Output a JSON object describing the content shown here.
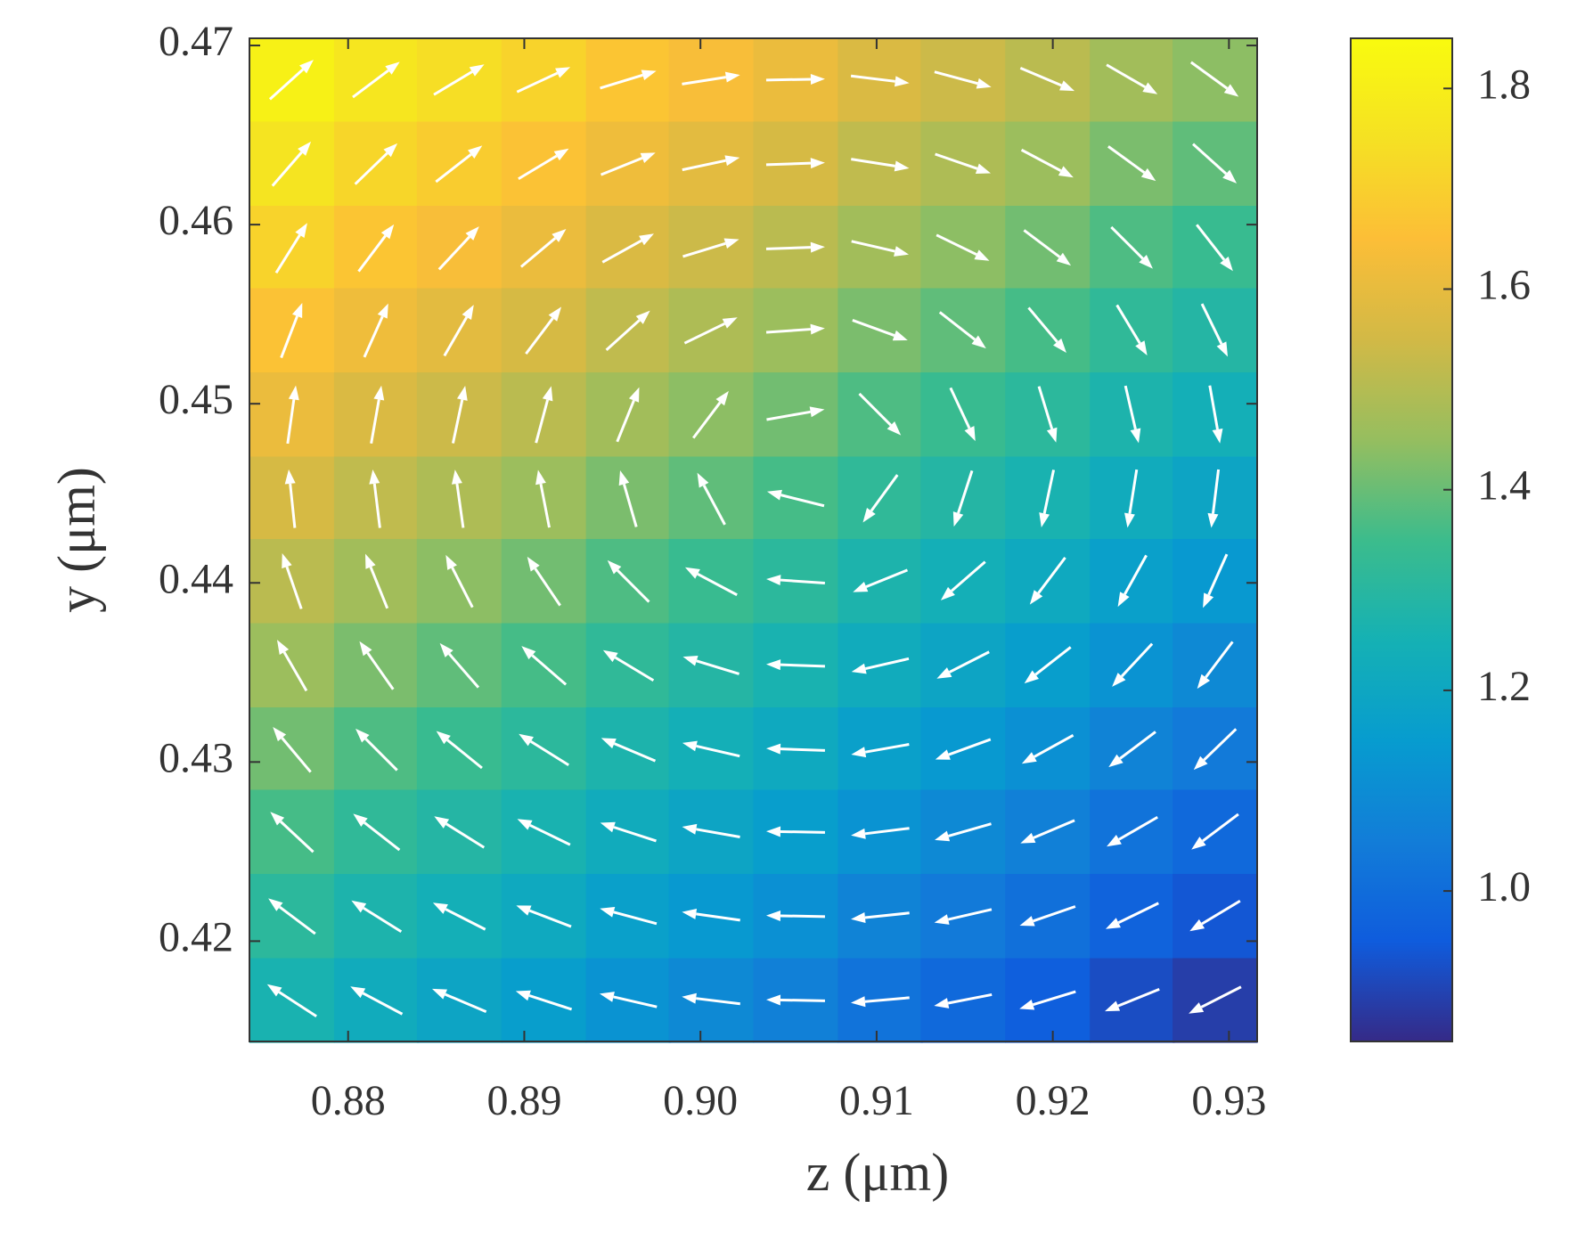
{
  "chart_data": {
    "type": "heatmap",
    "xlabel": "z (μm)",
    "ylabel": "y (μm)",
    "colormap": "parula",
    "arrow_color": "#ffffff",
    "xlim": [
      0.8744,
      0.9316
    ],
    "ylim": [
      0.4144,
      0.4704
    ],
    "xticks": [
      0.88,
      0.89,
      {
        "value": 0.9,
        "label": "0.90"
      },
      0.91,
      0.92,
      0.93
    ],
    "yticks": [
      0.42,
      0.43,
      0.44,
      0.45,
      0.46,
      0.47
    ],
    "clim": [
      0.85,
      1.85
    ],
    "cticks": [
      {
        "value": 1,
        "label": "1.0"
      },
      1.2,
      1.4,
      1.6,
      1.8
    ],
    "x": [
      0.8768,
      0.8816,
      0.8863,
      0.8911,
      0.8959,
      0.9006,
      0.9054,
      0.9102,
      0.9149,
      0.9197,
      0.9245,
      0.9292
    ],
    "y": [
      0.4681,
      0.4634,
      0.4587,
      0.4541,
      0.4494,
      0.4447,
      0.4401,
      0.4354,
      0.4307,
      0.4261,
      0.4214,
      0.4167
    ],
    "values": [
      [
        1.81,
        1.77,
        1.74,
        1.71,
        1.67,
        1.64,
        1.61,
        1.57,
        1.54,
        1.51,
        1.47,
        1.44
      ],
      [
        1.76,
        1.72,
        1.69,
        1.66,
        1.62,
        1.59,
        1.56,
        1.52,
        1.49,
        1.46,
        1.42,
        1.39
      ],
      [
        1.71,
        1.67,
        1.64,
        1.61,
        1.57,
        1.54,
        1.51,
        1.47,
        1.44,
        1.41,
        1.37,
        1.34
      ],
      [
        1.66,
        1.62,
        1.59,
        1.56,
        1.52,
        1.49,
        1.46,
        1.42,
        1.39,
        1.36,
        1.32,
        1.29
      ],
      [
        1.61,
        1.57,
        1.54,
        1.51,
        1.47,
        1.44,
        1.41,
        1.37,
        1.34,
        1.31,
        1.27,
        1.24
      ],
      [
        1.56,
        1.52,
        1.49,
        1.46,
        1.42,
        1.39,
        1.36,
        1.32,
        1.29,
        1.26,
        1.22,
        1.19
      ],
      [
        1.51,
        1.47,
        1.44,
        1.41,
        1.37,
        1.34,
        1.31,
        1.27,
        1.24,
        1.21,
        1.17,
        1.14
      ],
      [
        1.46,
        1.42,
        1.39,
        1.36,
        1.32,
        1.29,
        1.26,
        1.22,
        1.19,
        1.16,
        1.12,
        1.09
      ],
      [
        1.41,
        1.37,
        1.34,
        1.31,
        1.27,
        1.24,
        1.21,
        1.17,
        1.14,
        1.11,
        1.07,
        1.04
      ],
      [
        1.36,
        1.32,
        1.29,
        1.26,
        1.22,
        1.19,
        1.16,
        1.12,
        1.09,
        1.06,
        1.02,
        0.99
      ],
      [
        1.31,
        1.27,
        1.24,
        1.21,
        1.17,
        1.14,
        1.11,
        1.07,
        1.04,
        1.01,
        0.97,
        0.94
      ],
      [
        1.26,
        1.22,
        1.19,
        1.16,
        1.12,
        1.09,
        1.06,
        1.02,
        0.99,
        0.96,
        0.92,
        0.89
      ]
    ],
    "angles": [
      [
        42,
        37,
        31,
        25,
        17,
        9,
        1,
        -7,
        -15,
        -23,
        -30,
        -36
      ],
      [
        49,
        44,
        38,
        31,
        22,
        12,
        2,
        -9,
        -19,
        -28,
        -36,
        -42
      ],
      [
        58,
        53,
        47,
        40,
        29,
        17,
        2,
        -13,
        -26,
        -37,
        -45,
        -52
      ],
      [
        69,
        66,
        60,
        53,
        42,
        26,
        4,
        -20,
        -38,
        -50,
        -59,
        -64
      ],
      [
        82,
        80,
        78,
        75,
        68,
        53,
        10,
        -45,
        -65,
        -73,
        -77,
        -80
      ],
      [
        96,
        97,
        98,
        101,
        106,
        118,
        166,
        -126,
        -108,
        -102,
        -99,
        -97
      ],
      [
        109,
        112,
        117,
        124,
        135,
        152,
        176,
        -158,
        -139,
        -127,
        -119,
        -114
      ],
      [
        120,
        125,
        131,
        139,
        149,
        163,
        178,
        -167,
        -153,
        -142,
        -133,
        -127
      ],
      [
        130,
        135,
        141,
        148,
        157,
        167,
        178,
        -170,
        -160,
        -151,
        -143,
        -136
      ],
      [
        137,
        142,
        148,
        154,
        162,
        170,
        179,
        -173,
        -164,
        -157,
        -150,
        -143
      ],
      [
        143,
        148,
        153,
        159,
        165,
        172,
        179,
        -174,
        -167,
        -161,
        -154,
        -149
      ],
      [
        147,
        152,
        157,
        162,
        167,
        173,
        179,
        -175,
        -169,
        -163,
        -158,
        -153
      ]
    ]
  }
}
